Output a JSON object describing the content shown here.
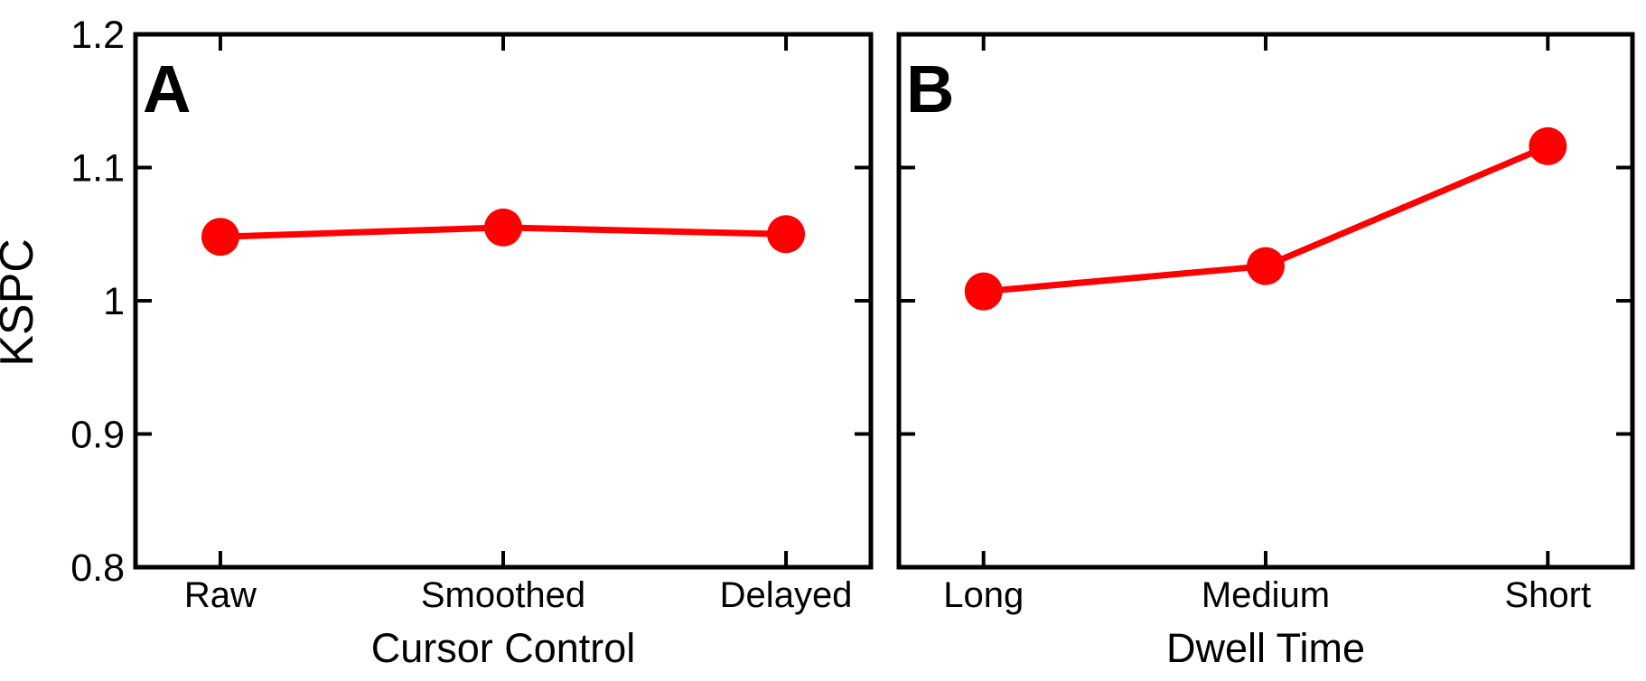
{
  "figure": {
    "background": "#FFFFFF",
    "axis_color": "#000000",
    "text_color": "#000000"
  },
  "chart_data": [
    {
      "type": "line",
      "panel_label": "A",
      "categories": [
        "Raw",
        "Smoothed",
        "Delayed"
      ],
      "values": [
        1.048,
        1.055,
        1.05
      ],
      "xlabel": "Cursor Control",
      "ylabel": "KSPC",
      "ylim": [
        0.8,
        1.2
      ],
      "ytick_values": [
        0.8,
        0.9,
        1.0,
        1.1,
        1.2
      ],
      "ytick_labels": [
        "0.8",
        "0.9",
        "1",
        "1.1",
        "1.2"
      ],
      "show_ytick_labels": true,
      "line_color": "#FF0000",
      "marker": "filled-circle",
      "grid": false,
      "legend": "none"
    },
    {
      "type": "line",
      "panel_label": "B",
      "categories": [
        "Long",
        "Medium",
        "Short"
      ],
      "values": [
        1.007,
        1.026,
        1.116
      ],
      "xlabel": "Dwell Time",
      "ylabel": "",
      "ylim": [
        0.8,
        1.2
      ],
      "ytick_values": [
        0.8,
        0.9,
        1.0,
        1.1,
        1.2
      ],
      "ytick_labels": [
        "0.8",
        "0.9",
        "1",
        "1.1",
        "1.2"
      ],
      "show_ytick_labels": false,
      "line_color": "#FF0000",
      "marker": "filled-circle",
      "grid": false,
      "legend": "none"
    }
  ]
}
